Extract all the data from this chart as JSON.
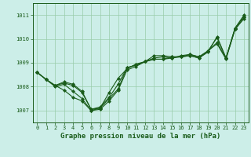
{
  "bg_color": "#cceee8",
  "grid_color": "#99ccaa",
  "line_color": "#1a5c1a",
  "title": "Graphe pression niveau de la mer (hPa)",
  "xlim": [
    -0.5,
    23.5
  ],
  "ylim": [
    1006.5,
    1011.5
  ],
  "yticks": [
    1007,
    1008,
    1009,
    1010,
    1011
  ],
  "xticks": [
    0,
    1,
    2,
    3,
    4,
    5,
    6,
    7,
    8,
    9,
    10,
    11,
    12,
    13,
    14,
    15,
    16,
    17,
    18,
    19,
    20,
    21,
    22,
    23
  ],
  "series": [
    {
      "x": [
        0,
        1,
        2,
        3,
        4,
        5,
        6,
        7,
        8,
        9,
        10,
        11,
        12,
        13,
        14,
        15,
        16,
        17,
        18,
        19,
        20,
        21,
        22,
        23
      ],
      "y": [
        1008.6,
        1008.3,
        1008.0,
        1008.1,
        1007.8,
        1007.5,
        1007.0,
        1007.05,
        1007.4,
        1007.85,
        1008.7,
        1008.85,
        1009.05,
        1009.3,
        1009.3,
        1009.25,
        1009.25,
        1009.3,
        1009.2,
        1009.45,
        1010.1,
        1009.2,
        1010.45,
        1011.0
      ]
    },
    {
      "x": [
        0,
        1,
        2,
        3,
        4,
        5,
        6,
        7,
        8,
        9,
        10,
        11,
        12,
        13,
        14,
        15,
        16,
        17,
        18,
        19,
        20,
        21,
        22,
        23
      ],
      "y": [
        1008.6,
        1008.3,
        1008.05,
        1008.2,
        1008.1,
        1007.8,
        1007.05,
        1007.1,
        1007.75,
        1008.35,
        1008.75,
        1008.95,
        1009.05,
        1009.15,
        1009.15,
        1009.25,
        1009.25,
        1009.35,
        1009.25,
        1009.5,
        1009.85,
        1009.2,
        1010.4,
        1010.9
      ]
    },
    {
      "x": [
        0,
        1,
        2,
        3,
        4,
        5,
        6,
        7,
        8,
        9,
        10,
        11,
        12,
        13,
        14,
        15,
        16,
        17,
        18,
        19,
        20,
        21,
        22,
        23
      ],
      "y": [
        1008.6,
        1008.3,
        1008.05,
        1008.15,
        1008.05,
        1007.75,
        1007.05,
        1007.15,
        1007.55,
        1008.1,
        1008.8,
        1008.9,
        1009.05,
        1009.15,
        1009.15,
        1009.2,
        1009.25,
        1009.3,
        1009.2,
        1009.5,
        1009.8,
        1009.15,
        1010.4,
        1010.85
      ]
    },
    {
      "x": [
        0,
        1,
        2,
        3,
        4,
        5,
        6,
        7,
        8,
        9,
        10,
        11,
        12,
        13,
        14,
        15,
        16,
        17,
        18,
        19,
        20,
        21,
        22,
        23
      ],
      "y": [
        1008.6,
        1008.3,
        1008.05,
        1007.85,
        1007.55,
        1007.4,
        1007.0,
        1007.1,
        1007.5,
        1007.9,
        1008.8,
        1008.9,
        1009.05,
        1009.2,
        1009.25,
        1009.2,
        1009.3,
        1009.35,
        1009.25,
        1009.5,
        1010.05,
        1009.2,
        1010.45,
        1010.95
      ]
    }
  ],
  "marker": "D",
  "markersize": 2.0,
  "linewidth": 0.8
}
